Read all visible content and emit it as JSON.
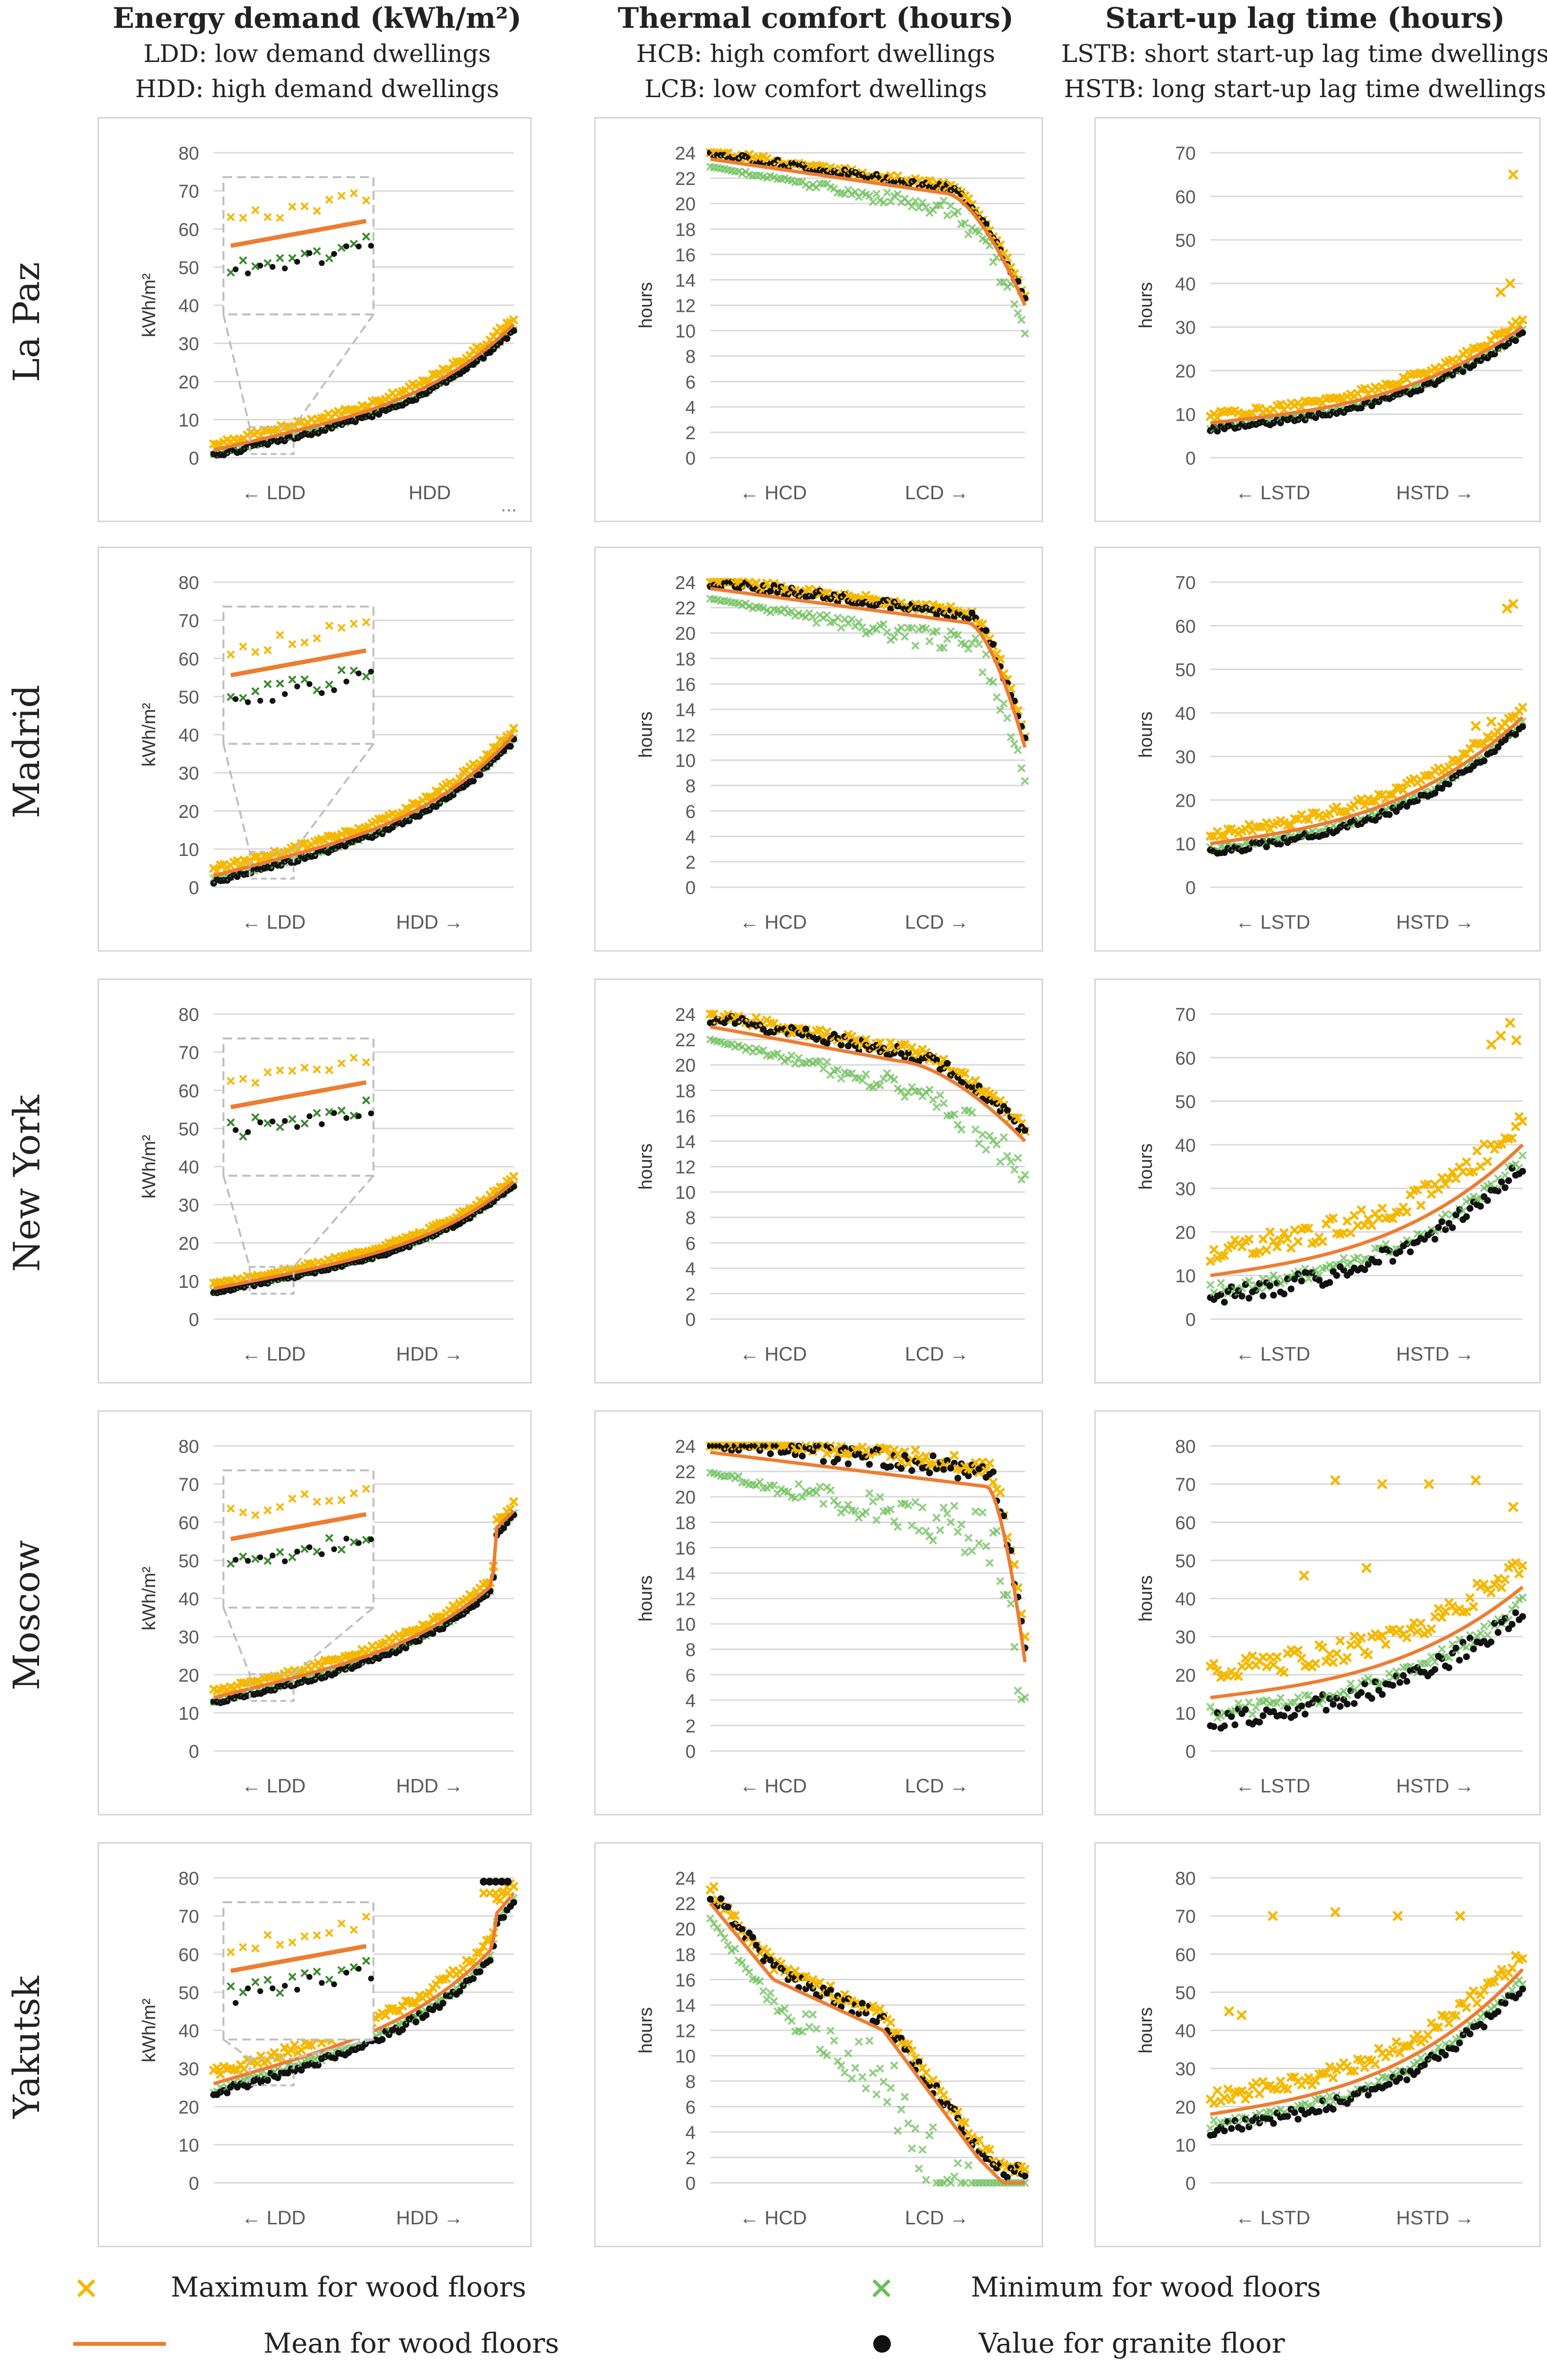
{
  "columns": [
    {
      "title": "Energy demand (kWh/m²)",
      "sub1": "LDD: low demand dwellings",
      "sub2": "HDD: high demand dwellings"
    },
    {
      "title": "Thermal comfort (hours)",
      "sub1": "HCB: high comfort dwellings",
      "sub2": "LCB: low comfort dwellings"
    },
    {
      "title": "Start-up lag time (hours)",
      "sub1": "LSTB: short start-up lag time dwellings",
      "sub2": "HSTB: long start-up lag time dwellings"
    }
  ],
  "rows": [
    "La Paz",
    "Madrid",
    "New York",
    "Moscow",
    "Yakutsk"
  ],
  "colors": {
    "max_wood": "#F5B800",
    "min_wood": "#6BBF59",
    "mean_wood": "#ED7D31",
    "granite": "#111111",
    "grid": "#d9d9d9",
    "axis_text": "#595959",
    "zoom_box": "#bfbfbf"
  },
  "legend": {
    "max_wood": "Maximum for wood floors",
    "min_wood": "Minimum for wood floors",
    "mean_wood": "Mean for wood floors",
    "granite": "Value for granite floor",
    "max_symbol": "×",
    "min_symbol": "×"
  },
  "extra_mark": "...",
  "chart_data": [
    {
      "id": "energy-la-paz",
      "type": "scatter",
      "title": "Energy demand - La Paz",
      "ylabel": "kWh/m²",
      "ylim": [
        0,
        80
      ],
      "yticks": [
        0,
        10,
        20,
        30,
        40,
        50,
        60,
        70,
        80
      ],
      "xlabels": [
        "← LDD",
        "HDD"
      ],
      "mean_start": 2,
      "mean_end": 35,
      "curve": "energy",
      "spread": 3,
      "zoom": true,
      "jump": 0,
      "tail_max": 0,
      "tail_granite": 0
    },
    {
      "id": "comfort-la-paz",
      "type": "scatter",
      "title": "Thermal comfort - La Paz",
      "ylabel": "hours",
      "ylim": [
        0,
        24
      ],
      "yticks": [
        0,
        2,
        4,
        6,
        8,
        10,
        12,
        14,
        16,
        18,
        20,
        22,
        24
      ],
      "xlabels": [
        "← HCD",
        "LCD →"
      ],
      "mean_start": 23.5,
      "mean_end": 12,
      "curve": "comfort",
      "spread": 1.5,
      "knee": 0.75
    },
    {
      "id": "lag-la-paz",
      "type": "scatter",
      "title": "Start-up lag time - La Paz",
      "ylabel": "hours",
      "ylim": [
        0,
        70
      ],
      "yticks": [
        0,
        10,
        20,
        30,
        40,
        50,
        60,
        70
      ],
      "xlabels": [
        "← LSTD",
        "HSTD →"
      ],
      "mean_start": 8,
      "mean_end": 30,
      "curve": "lag",
      "spread": 3,
      "max_outliers": [
        [
          0.97,
          65
        ],
        [
          0.96,
          40
        ],
        [
          0.93,
          38
        ]
      ]
    },
    {
      "id": "energy-madrid",
      "type": "scatter",
      "title": "Energy demand - Madrid",
      "ylabel": "kWh/m²",
      "ylim": [
        0,
        80
      ],
      "yticks": [
        0,
        10,
        20,
        30,
        40,
        50,
        60,
        70,
        80
      ],
      "xlabels": [
        "← LDD",
        "HDD →"
      ],
      "mean_start": 3,
      "mean_end": 40,
      "curve": "energy",
      "spread": 3,
      "zoom": true,
      "jump": 0,
      "tail_max": 0,
      "tail_granite": 0
    },
    {
      "id": "comfort-madrid",
      "type": "scatter",
      "title": "Thermal comfort - Madrid",
      "ylabel": "hours",
      "ylim": [
        0,
        24
      ],
      "yticks": [
        0,
        2,
        4,
        6,
        8,
        10,
        12,
        14,
        16,
        18,
        20,
        22,
        24
      ],
      "xlabels": [
        "← HCD",
        "LCD →"
      ],
      "mean_start": 23.5,
      "mean_end": 11,
      "curve": "comfort",
      "spread": 2,
      "knee": 0.82
    },
    {
      "id": "lag-madrid",
      "type": "scatter",
      "title": "Start-up lag time - Madrid",
      "ylabel": "hours",
      "ylim": [
        0,
        70
      ],
      "yticks": [
        0,
        10,
        20,
        30,
        40,
        50,
        60,
        70
      ],
      "xlabels": [
        "← LSTD",
        "HSTD →"
      ],
      "mean_start": 10,
      "mean_end": 39,
      "curve": "lag",
      "spread": 4,
      "max_outliers": [
        [
          0.97,
          65
        ],
        [
          0.95,
          64
        ],
        [
          0.9,
          38
        ],
        [
          0.85,
          37
        ]
      ]
    },
    {
      "id": "energy-new-york",
      "type": "scatter",
      "title": "Energy demand - New York",
      "ylabel": "kWh/m²",
      "ylim": [
        0,
        80
      ],
      "yticks": [
        0,
        10,
        20,
        30,
        40,
        50,
        60,
        70,
        80
      ],
      "xlabels": [
        "← LDD",
        "HDD →"
      ],
      "mean_start": 8,
      "mean_end": 36,
      "curve": "energy",
      "spread": 2,
      "zoom": true,
      "jump": 0,
      "tail_max": 0,
      "tail_granite": 0
    },
    {
      "id": "comfort-new-york",
      "type": "scatter",
      "title": "Thermal comfort - New York",
      "ylabel": "hours",
      "ylim": [
        0,
        24
      ],
      "yticks": [
        0,
        2,
        4,
        6,
        8,
        10,
        12,
        14,
        16,
        18,
        20,
        22,
        24
      ],
      "xlabels": [
        "← HCD",
        "LCD →"
      ],
      "mean_start": 23,
      "mean_end": 14,
      "curve": "comfort",
      "spread": 2.5,
      "knee": 0.6
    },
    {
      "id": "lag-new-york",
      "type": "scatter",
      "title": "Start-up lag time - New York",
      "ylabel": "hours",
      "ylim": [
        0,
        70
      ],
      "yticks": [
        0,
        10,
        20,
        30,
        40,
        50,
        60,
        70
      ],
      "xlabels": [
        "← LSTD",
        "HSTD →"
      ],
      "mean_start": 10,
      "mean_end": 40,
      "curve": "lag",
      "spread": 10,
      "max_outliers": [
        [
          0.96,
          68
        ],
        [
          0.93,
          65
        ],
        [
          0.9,
          63
        ],
        [
          0.98,
          64
        ]
      ]
    },
    {
      "id": "energy-moscow",
      "type": "scatter",
      "title": "Energy demand - Moscow",
      "ylabel": "kWh/m²",
      "ylim": [
        0,
        80
      ],
      "yticks": [
        0,
        10,
        20,
        30,
        40,
        50,
        60,
        70,
        80
      ],
      "xlabels": [
        "← LDD",
        "HDD →"
      ],
      "mean_start": 14,
      "mean_end": 49,
      "curve": "energy",
      "spread": 3,
      "zoom": true,
      "jump": 14,
      "tail_max": 0,
      "tail_granite": 0
    },
    {
      "id": "comfort-moscow",
      "type": "scatter",
      "title": "Thermal comfort - Moscow",
      "ylabel": "hours",
      "ylim": [
        0,
        24
      ],
      "yticks": [
        0,
        2,
        4,
        6,
        8,
        10,
        12,
        14,
        16,
        18,
        20,
        22,
        24
      ],
      "xlabels": [
        "← HCD",
        "LCD →"
      ],
      "mean_start": 23.5,
      "mean_end": 7,
      "curve": "comfort",
      "spread": 4,
      "knee": 0.88
    },
    {
      "id": "lag-moscow",
      "type": "scatter",
      "title": "Start-up lag time - Moscow",
      "ylabel": "hours",
      "ylim": [
        0,
        80
      ],
      "yticks": [
        0,
        10,
        20,
        30,
        40,
        50,
        60,
        70,
        80
      ],
      "xlabels": [
        "← LSTD",
        "HSTD →"
      ],
      "mean_start": 14,
      "mean_end": 43,
      "curve": "lag",
      "spread": 12,
      "max_outliers": [
        [
          0.4,
          71
        ],
        [
          0.55,
          70
        ],
        [
          0.7,
          70
        ],
        [
          0.85,
          71
        ],
        [
          0.97,
          64
        ],
        [
          0.3,
          46
        ],
        [
          0.5,
          48
        ]
      ]
    },
    {
      "id": "energy-yakutsk",
      "type": "scatter",
      "title": "Energy demand - Yakutsk",
      "ylabel": "kWh/m²",
      "ylim": [
        0,
        80
      ],
      "yticks": [
        0,
        10,
        20,
        30,
        40,
        50,
        60,
        70,
        80
      ],
      "xlabels": [
        "← LDD",
        "HDD →"
      ],
      "mean_start": 26,
      "mean_end": 68,
      "curve": "energy",
      "spread": 5,
      "zoom": true,
      "jump": 8,
      "tail_max": 76,
      "tail_granite": 79
    },
    {
      "id": "comfort-yakutsk",
      "type": "scatter",
      "title": "Thermal comfort - Yakutsk",
      "ylabel": "hours",
      "ylim": [
        0,
        24
      ],
      "yticks": [
        0,
        2,
        4,
        6,
        8,
        10,
        12,
        14,
        16,
        18,
        20,
        22,
        24
      ],
      "xlabels": [
        "← HCD",
        "LCD →"
      ],
      "mean_start": 22,
      "mean_end": 0,
      "curve": "yakutsk",
      "spread": 3,
      "knee": 0.5
    },
    {
      "id": "lag-yakutsk",
      "type": "scatter",
      "title": "Start-up lag time - Yakutsk",
      "ylabel": "hours",
      "ylim": [
        0,
        80
      ],
      "yticks": [
        0,
        10,
        20,
        30,
        40,
        50,
        60,
        70,
        80
      ],
      "xlabels": [
        "← LSTD",
        "HSTD →"
      ],
      "mean_start": 18,
      "mean_end": 56,
      "curve": "lag",
      "spread": 8,
      "max_outliers": [
        [
          0.2,
          70
        ],
        [
          0.4,
          71
        ],
        [
          0.6,
          70
        ],
        [
          0.8,
          70
        ],
        [
          0.06,
          45
        ],
        [
          0.1,
          44
        ]
      ]
    }
  ]
}
